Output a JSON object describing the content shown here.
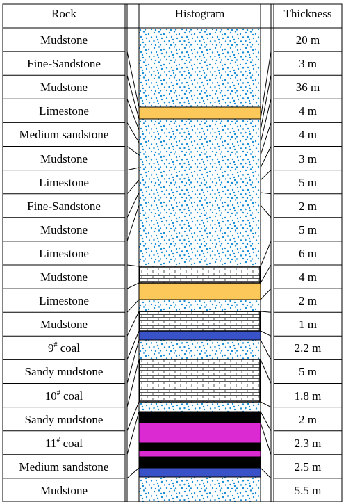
{
  "header": {
    "rock": "Rock",
    "histogram": "Histogram",
    "thickness": "Thickness"
  },
  "colors": {
    "sandstone_dot": "#1a8fd6",
    "limestone": "#fcc85a",
    "coal_blue": "#3a52c8",
    "coal_black": "#000000",
    "magenta": "#dc2ad2",
    "brick": "#555555"
  },
  "rows": [
    {
      "name": "Mudstone",
      "thickness": "20 m"
    },
    {
      "name": "Fine-Sandstone",
      "thickness": "3 m"
    },
    {
      "name": "Mudstone",
      "thickness": "36 m"
    },
    {
      "name": "Limestone",
      "thickness": "4 m"
    },
    {
      "name": "Medium sandstone",
      "thickness": "4 m"
    },
    {
      "name": "Mudstone",
      "thickness": "3 m"
    },
    {
      "name": "Limestone",
      "thickness": "5 m"
    },
    {
      "name": "Fine-Sandstone",
      "thickness": "2 m"
    },
    {
      "name": "Mudstone",
      "thickness": "5 m"
    },
    {
      "name": "Limestone",
      "thickness": "6 m"
    },
    {
      "name": "Mudstone",
      "thickness": "4 m"
    },
    {
      "name": "Limestone",
      "thickness": "2 m"
    },
    {
      "name": "Mudstone",
      "thickness": "1 m"
    },
    {
      "name": "9",
      "sup": "#",
      "suffix": " coal",
      "thickness": "2.2 m"
    },
    {
      "name": "Sandy mudstone",
      "thickness": "5 m"
    },
    {
      "name": "10",
      "sup": "#",
      "suffix": " coal",
      "thickness": "1.8 m"
    },
    {
      "name": "Sandy mudstone",
      "thickness": "2 m"
    },
    {
      "name": "11",
      "sup": "#",
      "suffix": " coal",
      "thickness": "2.3 m"
    },
    {
      "name": "Medium sandstone",
      "thickness": "2.5 m"
    },
    {
      "name": "Mudstone",
      "thickness": "5.5 m"
    }
  ]
}
